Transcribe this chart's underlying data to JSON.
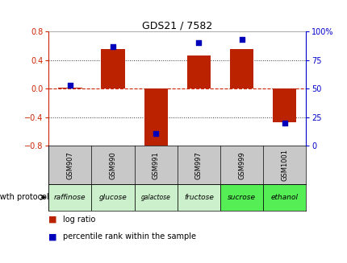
{
  "title": "GDS21 / 7582",
  "samples": [
    "GSM907",
    "GSM990",
    "GSM991",
    "GSM997",
    "GSM999",
    "GSM1001"
  ],
  "protocols": [
    "raffinose",
    "glucose",
    "galactose",
    "fructose",
    "sucrose",
    "ethanol"
  ],
  "log_ratio": [
    0.02,
    0.56,
    -0.86,
    0.47,
    0.56,
    -0.47
  ],
  "percentile_rank": [
    53,
    87,
    11,
    90,
    93,
    20
  ],
  "bar_color": "#bb2200",
  "dot_color": "#0000bb",
  "ylim_left": [
    -0.8,
    0.8
  ],
  "ylim_right": [
    0,
    100
  ],
  "yticks_left": [
    -0.8,
    -0.4,
    0.0,
    0.4,
    0.8
  ],
  "yticks_right": [
    0,
    25,
    50,
    75,
    100
  ],
  "protocol_colors": [
    "#ccf0cc",
    "#ccf0cc",
    "#ccf0cc",
    "#ccf0cc",
    "#55ee55",
    "#55ee55"
  ],
  "sample_bg": "#c8c8c8",
  "zero_line_color": "#cc2200",
  "dotted_line_color": "#333333",
  "legend_log_ratio": "log ratio",
  "legend_percentile": "percentile rank within the sample",
  "growth_protocol_label": "growth protocol",
  "title_color": "#000000",
  "left_axis_color": "#cc2200",
  "right_axis_color": "#0000cc",
  "bar_width": 0.55
}
